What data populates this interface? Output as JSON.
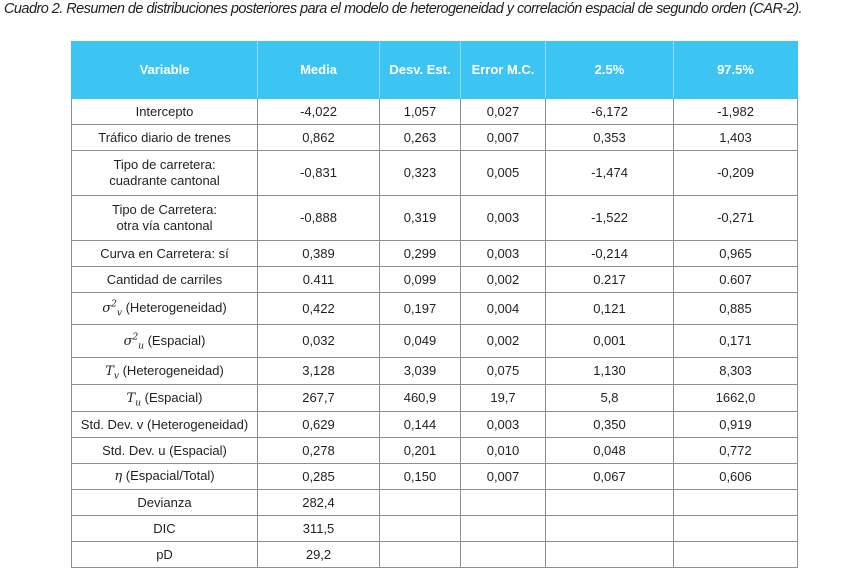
{
  "caption": "Cuadro 2. Resumen de distribuciones posteriores para el modelo de heterogeneidad y correlación espacial de segundo orden (CAR-2).",
  "headers": [
    "Variable",
    "Media",
    "Desv. Est.",
    "Error M.C.",
    "2.5%",
    "97.5%"
  ],
  "rows": [
    {
      "variable": "Intercepto",
      "media": "-4,022",
      "desv": "1,057",
      "error": "0,027",
      "p025": "-6,172",
      "p975": "-1,982"
    },
    {
      "variable": "Tráfico diario de trenes",
      "media": "0,862",
      "desv": "0,263",
      "error": "0,007",
      "p025": "0,353",
      "p975": "1,403"
    },
    {
      "variable_l1": "Tipo de carretera:",
      "variable_l2": "cuadrante cantonal",
      "media": "-0,831",
      "desv": "0,323",
      "error": "0,005",
      "p025": "-1,474",
      "p975": "-0,209"
    },
    {
      "variable_l1": "Tipo de Carretera:",
      "variable_l2": "otra vía cantonal",
      "media": "-0,888",
      "desv": "0,319",
      "error": "0,003",
      "p025": "-1,522",
      "p975": "-0,271"
    },
    {
      "variable": "Curva en Carretera: sí",
      "media": "0,389",
      "desv": "0,299",
      "error": "0,003",
      "p025": "-0,214",
      "p975": "0,965"
    },
    {
      "variable": "Cantidad de carriles",
      "media": "0.411",
      "desv": "0,099",
      "error": "0,002",
      "p025": "0.217",
      "p975": "0.607"
    },
    {
      "symbol": "σ",
      "sup": "2",
      "sub": "v",
      "label": " (Heterogeneidad)",
      "media": "0,422",
      "desv": "0,197",
      "error": "0,004",
      "p025": "0,121",
      "p975": "0,885"
    },
    {
      "symbol": "σ",
      "sup": "2",
      "sub": "u",
      "label": " (Espacial)",
      "media": "0,032",
      "desv": "0,049",
      "error": "0,002",
      "p025": "0,001",
      "p975": "0,171"
    },
    {
      "symbol": "T",
      "sub": "v",
      "label": " (Heterogeneidad)",
      "media": "3,128",
      "desv": "3,039",
      "error": "0,075",
      "p025": "1,130",
      "p975": "8,303"
    },
    {
      "symbol": "T",
      "sub": "u",
      "label": " (Espacial)",
      "media": "267,7",
      "desv": "460,9",
      "error": "19,7",
      "p025": "5,8",
      "p975": "1662,0"
    },
    {
      "variable": "Std. Dev. v (Heterogeneidad)",
      "media": "0,629",
      "desv": "0,144",
      "error": "0,003",
      "p025": "0,350",
      "p975": "0,919"
    },
    {
      "variable": "Std. Dev. u (Espacial)",
      "media": "0,278",
      "desv": "0,201",
      "error": "0,010",
      "p025": "0,048",
      "p975": "0,772"
    },
    {
      "symbol": "η",
      "label": " (Espacial/Total)",
      "media": "0,285",
      "desv": "0,150",
      "error": "0,007",
      "p025": "0,067",
      "p975": "0,606"
    },
    {
      "variable": "Devianza",
      "media": "282,4",
      "desv": "",
      "error": "",
      "p025": "",
      "p975": ""
    },
    {
      "variable": "DIC",
      "media": "311,5",
      "desv": "",
      "error": "",
      "p025": "",
      "p975": ""
    },
    {
      "variable": "pD",
      "media": "29,2",
      "desv": "",
      "error": "",
      "p025": "",
      "p975": ""
    }
  ],
  "colors": {
    "header_bg": "#3cc4f2",
    "header_text": "#ffffff",
    "border": "#8f8f8f",
    "text": "#231f20"
  }
}
